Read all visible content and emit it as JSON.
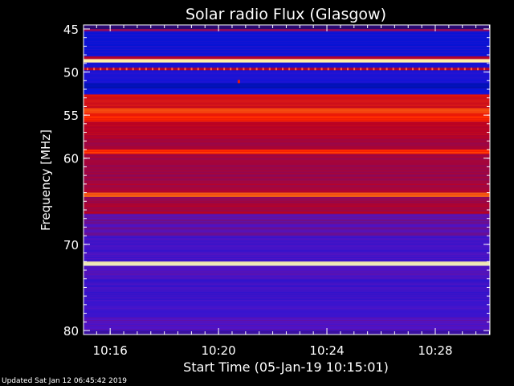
{
  "footer": "Updated Sat Jan 12 06:45:42 2019",
  "chart_data": {
    "type": "heatmap",
    "title": "Solar radio Flux (Glasgow)",
    "xlabel": "Start Time (05-Jan-19 10:15:01)",
    "ylabel": "Frequency [MHz]",
    "ylim": [
      45,
      80
    ],
    "y_inverted": true,
    "xlim": [
      "10:15:01",
      "10:30:01"
    ],
    "y_ticks": [
      45,
      50,
      55,
      60,
      70,
      80
    ],
    "y_tick_labels": [
      "45",
      "50",
      "55",
      "60",
      "70",
      "80"
    ],
    "x_ticks": [
      "10:16",
      "10:20",
      "10:24",
      "10:28"
    ],
    "grid": false,
    "colormap": "blue-red-yellow",
    "intensity_bands": [
      {
        "from": 45.0,
        "to": 45.3,
        "level": 0.45
      },
      {
        "from": 45.3,
        "to": 48.2,
        "level": 0.18
      },
      {
        "from": 48.2,
        "to": 48.5,
        "level": 0.55
      },
      {
        "from": 48.5,
        "to": 48.9,
        "level": 1.0
      },
      {
        "from": 48.9,
        "to": 49.5,
        "level": 0.2
      },
      {
        "from": 49.5,
        "to": 49.8,
        "level": 0.55
      },
      {
        "from": 49.8,
        "to": 51.3,
        "level": 0.22
      },
      {
        "from": 51.3,
        "to": 51.9,
        "level": 0.08
      },
      {
        "from": 51.9,
        "to": 52.6,
        "level": 0.2
      },
      {
        "from": 52.6,
        "to": 53.0,
        "level": 0.62
      },
      {
        "from": 53.0,
        "to": 54.2,
        "level": 0.62
      },
      {
        "from": 54.2,
        "to": 54.8,
        "level": 0.74
      },
      {
        "from": 54.8,
        "to": 55.8,
        "level": 0.68
      },
      {
        "from": 55.8,
        "to": 57.3,
        "level": 0.57
      },
      {
        "from": 57.3,
        "to": 59.0,
        "level": 0.52
      },
      {
        "from": 59.0,
        "to": 59.5,
        "level": 0.7
      },
      {
        "from": 59.5,
        "to": 62.5,
        "level": 0.48
      },
      {
        "from": 62.5,
        "to": 64.0,
        "level": 0.5
      },
      {
        "from": 64.0,
        "to": 64.5,
        "level": 0.78
      },
      {
        "from": 64.5,
        "to": 65.0,
        "level": 0.48
      },
      {
        "from": 65.0,
        "to": 66.5,
        "level": 0.52
      },
      {
        "from": 66.5,
        "to": 69.0,
        "level": 0.38
      },
      {
        "from": 69.0,
        "to": 72.0,
        "level": 0.32
      },
      {
        "from": 72.0,
        "to": 72.5,
        "level": 1.0
      },
      {
        "from": 72.5,
        "to": 74.0,
        "level": 0.36
      },
      {
        "from": 74.0,
        "to": 76.5,
        "level": 0.3
      },
      {
        "from": 76.5,
        "to": 78.5,
        "level": 0.32
      },
      {
        "from": 78.5,
        "to": 80.0,
        "level": 0.35
      }
    ],
    "point_events": [
      {
        "time": "10:20:45",
        "freq": 51.1,
        "level": 0.65
      }
    ]
  }
}
